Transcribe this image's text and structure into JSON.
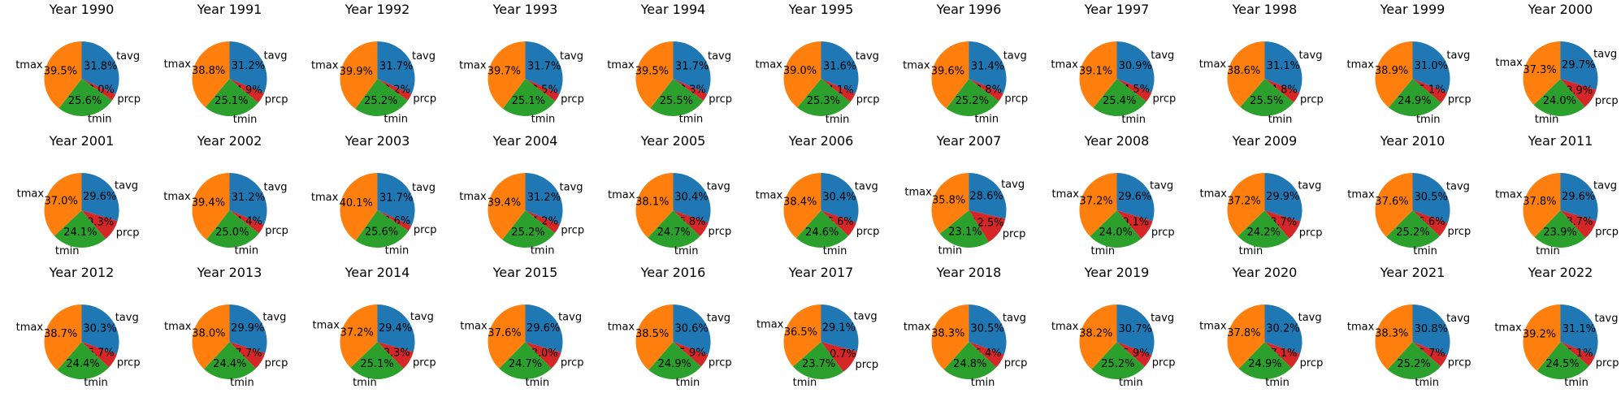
{
  "chart_data": {
    "type": "pie",
    "layout": {
      "rows": 3,
      "cols": 11
    },
    "start_angle_deg": 90,
    "counterclockwise": false,
    "colors": {
      "tavg": "#1f77b4",
      "prcp": "#d62728",
      "tmin": "#2ca02c",
      "tmax": "#ff7f0e"
    },
    "charts": [
      {
        "title": "Year 1990",
        "slices": [
          {
            "label": "tavg",
            "value": 31.8
          },
          {
            "label": "prcp",
            "value": 3.0
          },
          {
            "label": "tmin",
            "value": 25.6
          },
          {
            "label": "tmax",
            "value": 39.5
          }
        ]
      },
      {
        "title": "Year 1991",
        "slices": [
          {
            "label": "tavg",
            "value": 31.2
          },
          {
            "label": "prcp",
            "value": 4.9
          },
          {
            "label": "tmin",
            "value": 25.1
          },
          {
            "label": "tmax",
            "value": 38.8
          }
        ]
      },
      {
        "title": "Year 1992",
        "slices": [
          {
            "label": "tavg",
            "value": 31.7
          },
          {
            "label": "prcp",
            "value": 3.2
          },
          {
            "label": "tmin",
            "value": 25.2
          },
          {
            "label": "tmax",
            "value": 39.9
          }
        ]
      },
      {
        "title": "Year 1993",
        "slices": [
          {
            "label": "tavg",
            "value": 31.7
          },
          {
            "label": "prcp",
            "value": 3.5
          },
          {
            "label": "tmin",
            "value": 25.1
          },
          {
            "label": "tmax",
            "value": 39.7
          }
        ]
      },
      {
        "title": "Year 1994",
        "slices": [
          {
            "label": "tavg",
            "value": 31.7
          },
          {
            "label": "prcp",
            "value": 3.3
          },
          {
            "label": "tmin",
            "value": 25.5
          },
          {
            "label": "tmax",
            "value": 39.5
          }
        ]
      },
      {
        "title": "Year 1995",
        "slices": [
          {
            "label": "tavg",
            "value": 31.6
          },
          {
            "label": "prcp",
            "value": 4.1
          },
          {
            "label": "tmin",
            "value": 25.3
          },
          {
            "label": "tmax",
            "value": 39.0
          }
        ]
      },
      {
        "title": "Year 1996",
        "slices": [
          {
            "label": "tavg",
            "value": 31.4
          },
          {
            "label": "prcp",
            "value": 3.8
          },
          {
            "label": "tmin",
            "value": 25.2
          },
          {
            "label": "tmax",
            "value": 39.6
          }
        ]
      },
      {
        "title": "Year 1997",
        "slices": [
          {
            "label": "tavg",
            "value": 30.9
          },
          {
            "label": "prcp",
            "value": 4.5
          },
          {
            "label": "tmin",
            "value": 25.4
          },
          {
            "label": "tmax",
            "value": 39.1
          }
        ]
      },
      {
        "title": "Year 1998",
        "slices": [
          {
            "label": "tavg",
            "value": 31.1
          },
          {
            "label": "prcp",
            "value": 4.8
          },
          {
            "label": "tmin",
            "value": 25.5
          },
          {
            "label": "tmax",
            "value": 38.6
          }
        ]
      },
      {
        "title": "Year 1999",
        "slices": [
          {
            "label": "tavg",
            "value": 31.0
          },
          {
            "label": "prcp",
            "value": 5.1
          },
          {
            "label": "tmin",
            "value": 24.9
          },
          {
            "label": "tmax",
            "value": 38.9
          }
        ]
      },
      {
        "title": "Year 2000",
        "slices": [
          {
            "label": "tavg",
            "value": 29.7
          },
          {
            "label": "prcp",
            "value": 8.9
          },
          {
            "label": "tmin",
            "value": 24.0
          },
          {
            "label": "tmax",
            "value": 37.3
          }
        ]
      },
      {
        "title": "Year 2001",
        "slices": [
          {
            "label": "tavg",
            "value": 29.6
          },
          {
            "label": "prcp",
            "value": 9.3
          },
          {
            "label": "tmin",
            "value": 24.1
          },
          {
            "label": "tmax",
            "value": 37.0
          }
        ]
      },
      {
        "title": "Year 2002",
        "slices": [
          {
            "label": "tavg",
            "value": 31.2
          },
          {
            "label": "prcp",
            "value": 4.4
          },
          {
            "label": "tmin",
            "value": 25.0
          },
          {
            "label": "tmax",
            "value": 39.4
          }
        ]
      },
      {
        "title": "Year 2003",
        "slices": [
          {
            "label": "tavg",
            "value": 31.7
          },
          {
            "label": "prcp",
            "value": 2.6
          },
          {
            "label": "tmin",
            "value": 25.6
          },
          {
            "label": "tmax",
            "value": 40.1
          }
        ]
      },
      {
        "title": "Year 2004",
        "slices": [
          {
            "label": "tavg",
            "value": 31.2
          },
          {
            "label": "prcp",
            "value": 4.2
          },
          {
            "label": "tmin",
            "value": 25.2
          },
          {
            "label": "tmax",
            "value": 39.4
          }
        ]
      },
      {
        "title": "Year 2005",
        "slices": [
          {
            "label": "tavg",
            "value": 30.4
          },
          {
            "label": "prcp",
            "value": 6.8
          },
          {
            "label": "tmin",
            "value": 24.7
          },
          {
            "label": "tmax",
            "value": 38.1
          }
        ]
      },
      {
        "title": "Year 2006",
        "slices": [
          {
            "label": "tavg",
            "value": 30.4
          },
          {
            "label": "prcp",
            "value": 6.6
          },
          {
            "label": "tmin",
            "value": 24.6
          },
          {
            "label": "tmax",
            "value": 38.4
          }
        ]
      },
      {
        "title": "Year 2007",
        "slices": [
          {
            "label": "tavg",
            "value": 28.6
          },
          {
            "label": "prcp",
            "value": 12.5
          },
          {
            "label": "tmin",
            "value": 23.1
          },
          {
            "label": "tmax",
            "value": 35.8
          }
        ]
      },
      {
        "title": "Year 2008",
        "slices": [
          {
            "label": "tavg",
            "value": 29.6
          },
          {
            "label": "prcp",
            "value": 9.1
          },
          {
            "label": "tmin",
            "value": 24.0
          },
          {
            "label": "tmax",
            "value": 37.2
          }
        ]
      },
      {
        "title": "Year 2009",
        "slices": [
          {
            "label": "tavg",
            "value": 29.9
          },
          {
            "label": "prcp",
            "value": 8.7
          },
          {
            "label": "tmin",
            "value": 24.2
          },
          {
            "label": "tmax",
            "value": 37.2
          }
        ]
      },
      {
        "title": "Year 2010",
        "slices": [
          {
            "label": "tavg",
            "value": 30.5
          },
          {
            "label": "prcp",
            "value": 6.6
          },
          {
            "label": "tmin",
            "value": 25.2
          },
          {
            "label": "tmax",
            "value": 37.6
          }
        ]
      },
      {
        "title": "Year 2011",
        "slices": [
          {
            "label": "tavg",
            "value": 29.6
          },
          {
            "label": "prcp",
            "value": 8.7
          },
          {
            "label": "tmin",
            "value": 23.9
          },
          {
            "label": "tmax",
            "value": 37.8
          }
        ]
      },
      {
        "title": "Year 2012",
        "slices": [
          {
            "label": "tavg",
            "value": 30.3
          },
          {
            "label": "prcp",
            "value": 6.7
          },
          {
            "label": "tmin",
            "value": 24.4
          },
          {
            "label": "tmax",
            "value": 38.7
          }
        ]
      },
      {
        "title": "Year 2013",
        "slices": [
          {
            "label": "tavg",
            "value": 29.9
          },
          {
            "label": "prcp",
            "value": 7.7
          },
          {
            "label": "tmin",
            "value": 24.4
          },
          {
            "label": "tmax",
            "value": 38.0
          }
        ]
      },
      {
        "title": "Year 2014",
        "slices": [
          {
            "label": "tavg",
            "value": 29.4
          },
          {
            "label": "prcp",
            "value": 8.3
          },
          {
            "label": "tmin",
            "value": 25.1
          },
          {
            "label": "tmax",
            "value": 37.2
          }
        ]
      },
      {
        "title": "Year 2015",
        "slices": [
          {
            "label": "tavg",
            "value": 29.6
          },
          {
            "label": "prcp",
            "value": 8.0
          },
          {
            "label": "tmin",
            "value": 24.7
          },
          {
            "label": "tmax",
            "value": 37.6
          }
        ]
      },
      {
        "title": "Year 2016",
        "slices": [
          {
            "label": "tavg",
            "value": 30.6
          },
          {
            "label": "prcp",
            "value": 5.9
          },
          {
            "label": "tmin",
            "value": 24.9
          },
          {
            "label": "tmax",
            "value": 38.5
          }
        ]
      },
      {
        "title": "Year 2017",
        "slices": [
          {
            "label": "tavg",
            "value": 29.1
          },
          {
            "label": "prcp",
            "value": 10.7
          },
          {
            "label": "tmin",
            "value": 23.7
          },
          {
            "label": "tmax",
            "value": 36.5
          }
        ]
      },
      {
        "title": "Year 2018",
        "slices": [
          {
            "label": "tavg",
            "value": 30.5
          },
          {
            "label": "prcp",
            "value": 6.4
          },
          {
            "label": "tmin",
            "value": 24.8
          },
          {
            "label": "tmax",
            "value": 38.3
          }
        ]
      },
      {
        "title": "Year 2019",
        "slices": [
          {
            "label": "tavg",
            "value": 30.7
          },
          {
            "label": "prcp",
            "value": 5.9
          },
          {
            "label": "tmin",
            "value": 25.2
          },
          {
            "label": "tmax",
            "value": 38.2
          }
        ]
      },
      {
        "title": "Year 2020",
        "slices": [
          {
            "label": "tavg",
            "value": 30.2
          },
          {
            "label": "prcp",
            "value": 7.1
          },
          {
            "label": "tmin",
            "value": 24.9
          },
          {
            "label": "tmax",
            "value": 37.8
          }
        ]
      },
      {
        "title": "Year 2021",
        "slices": [
          {
            "label": "tavg",
            "value": 30.8
          },
          {
            "label": "prcp",
            "value": 5.7
          },
          {
            "label": "tmin",
            "value": 25.2
          },
          {
            "label": "tmax",
            "value": 38.3
          }
        ]
      },
      {
        "title": "Year 2022",
        "slices": [
          {
            "label": "tavg",
            "value": 31.1
          },
          {
            "label": "prcp",
            "value": 5.1
          },
          {
            "label": "tmin",
            "value": 24.5
          },
          {
            "label": "tmax",
            "value": 39.2
          }
        ]
      }
    ]
  }
}
